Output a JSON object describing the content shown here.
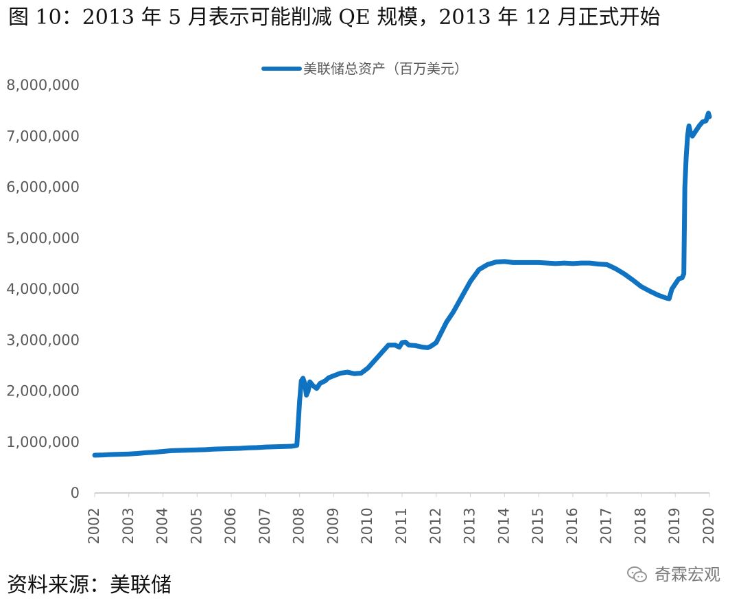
{
  "figure": {
    "title": "图 10：2013 年 5 月表示可能削减 QE 规模，2013 年 12 月正式开始",
    "source": "资料来源：美联储",
    "watermark": "奇霖宏观"
  },
  "chart_data": {
    "type": "line",
    "legend": {
      "placement": "top-center",
      "entries": [
        "美联储总资产（百万美元）"
      ]
    },
    "x": [
      2002.0,
      2002.25,
      2002.5,
      2002.75,
      2003.0,
      2003.25,
      2003.5,
      2003.75,
      2004.0,
      2004.25,
      2004.5,
      2004.75,
      2005.0,
      2005.25,
      2005.5,
      2005.75,
      2006.0,
      2006.25,
      2006.5,
      2006.75,
      2007.0,
      2007.25,
      2007.5,
      2007.75,
      2007.85,
      2007.92,
      2008.0,
      2008.05,
      2008.1,
      2008.15,
      2008.2,
      2008.25,
      2008.3,
      2008.4,
      2008.5,
      2008.6,
      2008.75,
      2008.85,
      2009.0,
      2009.2,
      2009.4,
      2009.6,
      2009.8,
      2010.0,
      2010.2,
      2010.4,
      2010.6,
      2010.8,
      2010.92,
      2011.0,
      2011.1,
      2011.2,
      2011.4,
      2011.6,
      2011.75,
      2011.85,
      2012.0,
      2012.15,
      2012.3,
      2012.5,
      2012.75,
      2013.0,
      2013.25,
      2013.5,
      2013.75,
      2014.0,
      2014.25,
      2014.5,
      2014.75,
      2015.0,
      2015.25,
      2015.5,
      2015.75,
      2016.0,
      2016.25,
      2016.5,
      2016.75,
      2017.0,
      2017.25,
      2017.5,
      2017.75,
      2018.0,
      2018.25,
      2018.5,
      2018.75,
      2018.82,
      2018.9,
      2019.0,
      2019.1,
      2019.2,
      2019.25,
      2019.28,
      2019.32,
      2019.36,
      2019.4,
      2019.45,
      2019.5,
      2019.55,
      2019.6,
      2019.7,
      2019.8,
      2019.9,
      2019.97,
      2020.0
    ],
    "series": [
      {
        "values": [
          740000,
          745000,
          755000,
          760000,
          765000,
          775000,
          790000,
          800000,
          815000,
          830000,
          835000,
          840000,
          845000,
          850000,
          860000,
          865000,
          870000,
          875000,
          885000,
          890000,
          900000,
          905000,
          910000,
          915000,
          925000,
          935000,
          1800000,
          2200000,
          2250000,
          2150000,
          1920000,
          2000000,
          2180000,
          2100000,
          2050000,
          2150000,
          2200000,
          2260000,
          2300000,
          2350000,
          2370000,
          2340000,
          2350000,
          2450000,
          2600000,
          2750000,
          2900000,
          2900000,
          2860000,
          2950000,
          2960000,
          2900000,
          2890000,
          2860000,
          2850000,
          2880000,
          2950000,
          3150000,
          3350000,
          3550000,
          3850000,
          4150000,
          4380000,
          4480000,
          4530000,
          4540000,
          4520000,
          4520000,
          4520000,
          4520000,
          4510000,
          4500000,
          4510000,
          4500000,
          4510000,
          4510000,
          4490000,
          4480000,
          4400000,
          4300000,
          4180000,
          4050000,
          3960000,
          3880000,
          3820000,
          3810000,
          4000000,
          4100000,
          4200000,
          4220000,
          4300000,
          6000000,
          6600000,
          7000000,
          7200000,
          7050000,
          7000000,
          7050000,
          7100000,
          7200000,
          7280000,
          7300000,
          7450000,
          7380000
        ]
      }
    ],
    "x_ticks": [
      "2002",
      "2003",
      "2004",
      "2005",
      "2006",
      "2007",
      "2008",
      "2009",
      "2010",
      "2011",
      "2012",
      "2013",
      "2014",
      "2015",
      "2016",
      "2017",
      "2018",
      "2019",
      "2020"
    ],
    "y_ticks": [
      "0",
      "1,000,000",
      "2,000,000",
      "3,000,000",
      "4,000,000",
      "5,000,000",
      "6,000,000",
      "7,000,000",
      "8,000,000"
    ],
    "ylim": [
      0,
      8000000
    ],
    "xlim": [
      2002,
      2020
    ],
    "grid": false,
    "colors": {
      "line": "#0f73c2",
      "axis": "#d0d0d0",
      "text": "#595959"
    }
  }
}
